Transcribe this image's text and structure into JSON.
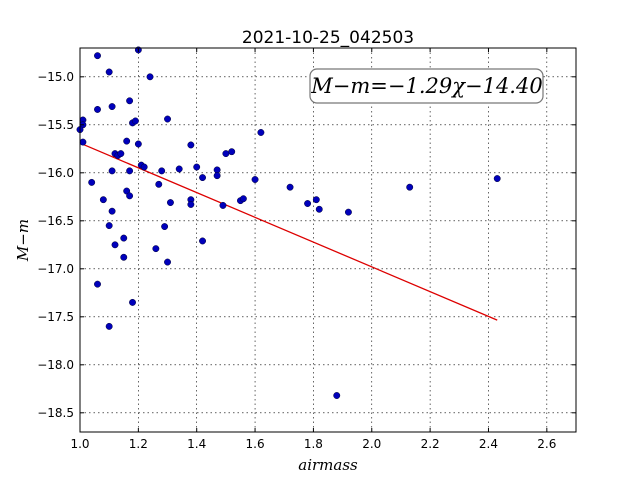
{
  "chart_data": {
    "type": "scatter",
    "title": "2021-10-25_042503",
    "xlabel": "airmass",
    "ylabel": "M−m",
    "xlim": [
      1.0,
      2.7
    ],
    "ylim": [
      -18.7,
      -14.7
    ],
    "y_inverted": true,
    "grid": true,
    "x_ticks": [
      1.0,
      1.2,
      1.4,
      1.6,
      1.8,
      2.0,
      2.2,
      2.4,
      2.6
    ],
    "x_tick_labels": [
      "1.0",
      "1.2",
      "1.4",
      "1.6",
      "1.8",
      "2.0",
      "2.2",
      "2.4",
      "2.6"
    ],
    "y_ticks": [
      -15.0,
      -15.5,
      -16.0,
      -16.5,
      -17.0,
      -17.5,
      -18.0,
      -18.5
    ],
    "y_tick_labels": [
      "−15.0",
      "−15.5",
      "−16.0",
      "−16.5",
      "−17.0",
      "−17.5",
      "−18.0",
      "−18.5"
    ],
    "annotation": "M−m=−1.29χ−14.40",
    "annotation_position": "top-right",
    "fit": {
      "slope": -1.29,
      "intercept": -14.4,
      "x_range": [
        1.0,
        2.43
      ],
      "color": "#dd0000"
    },
    "point_color": "#0000bb",
    "points": [
      [
        1.01,
        -15.45
      ],
      [
        1.01,
        -15.5
      ],
      [
        1.0,
        -15.55
      ],
      [
        1.01,
        -15.68
      ],
      [
        1.04,
        -16.1
      ],
      [
        1.06,
        -15.34
      ],
      [
        1.06,
        -14.78
      ],
      [
        1.06,
        -17.16
      ],
      [
        1.08,
        -16.28
      ],
      [
        1.1,
        -14.95
      ],
      [
        1.1,
        -16.55
      ],
      [
        1.1,
        -17.6
      ],
      [
        1.11,
        -15.31
      ],
      [
        1.11,
        -15.98
      ],
      [
        1.11,
        -16.4
      ],
      [
        1.12,
        -15.8
      ],
      [
        1.12,
        -16.75
      ],
      [
        1.13,
        -15.82
      ],
      [
        1.14,
        -15.8
      ],
      [
        1.15,
        -16.68
      ],
      [
        1.15,
        -16.88
      ],
      [
        1.16,
        -15.67
      ],
      [
        1.16,
        -16.19
      ],
      [
        1.17,
        -16.24
      ],
      [
        1.17,
        -15.25
      ],
      [
        1.17,
        -15.98
      ],
      [
        1.18,
        -15.48
      ],
      [
        1.19,
        -15.46
      ],
      [
        1.18,
        -17.35
      ],
      [
        1.2,
        -14.72
      ],
      [
        1.2,
        -15.7
      ],
      [
        1.21,
        -15.92
      ],
      [
        1.22,
        -15.94
      ],
      [
        1.24,
        -15.0
      ],
      [
        1.26,
        -16.79
      ],
      [
        1.27,
        -16.12
      ],
      [
        1.28,
        -15.98
      ],
      [
        1.29,
        -16.56
      ],
      [
        1.3,
        -16.93
      ],
      [
        1.3,
        -15.44
      ],
      [
        1.31,
        -16.31
      ],
      [
        1.34,
        -15.96
      ],
      [
        1.38,
        -15.71
      ],
      [
        1.38,
        -16.28
      ],
      [
        1.38,
        -16.33
      ],
      [
        1.4,
        -15.94
      ],
      [
        1.42,
        -16.05
      ],
      [
        1.42,
        -16.71
      ],
      [
        1.47,
        -15.97
      ],
      [
        1.47,
        -16.03
      ],
      [
        1.49,
        -16.34
      ],
      [
        1.5,
        -15.8
      ],
      [
        1.52,
        -15.78
      ],
      [
        1.55,
        -16.29
      ],
      [
        1.56,
        -16.27
      ],
      [
        1.6,
        -16.07
      ],
      [
        1.62,
        -15.58
      ],
      [
        1.72,
        -16.15
      ],
      [
        1.78,
        -16.32
      ],
      [
        1.81,
        -16.28
      ],
      [
        1.82,
        -16.38
      ],
      [
        1.88,
        -18.32
      ],
      [
        1.92,
        -16.41
      ],
      [
        2.13,
        -16.15
      ],
      [
        2.43,
        -16.06
      ]
    ]
  }
}
